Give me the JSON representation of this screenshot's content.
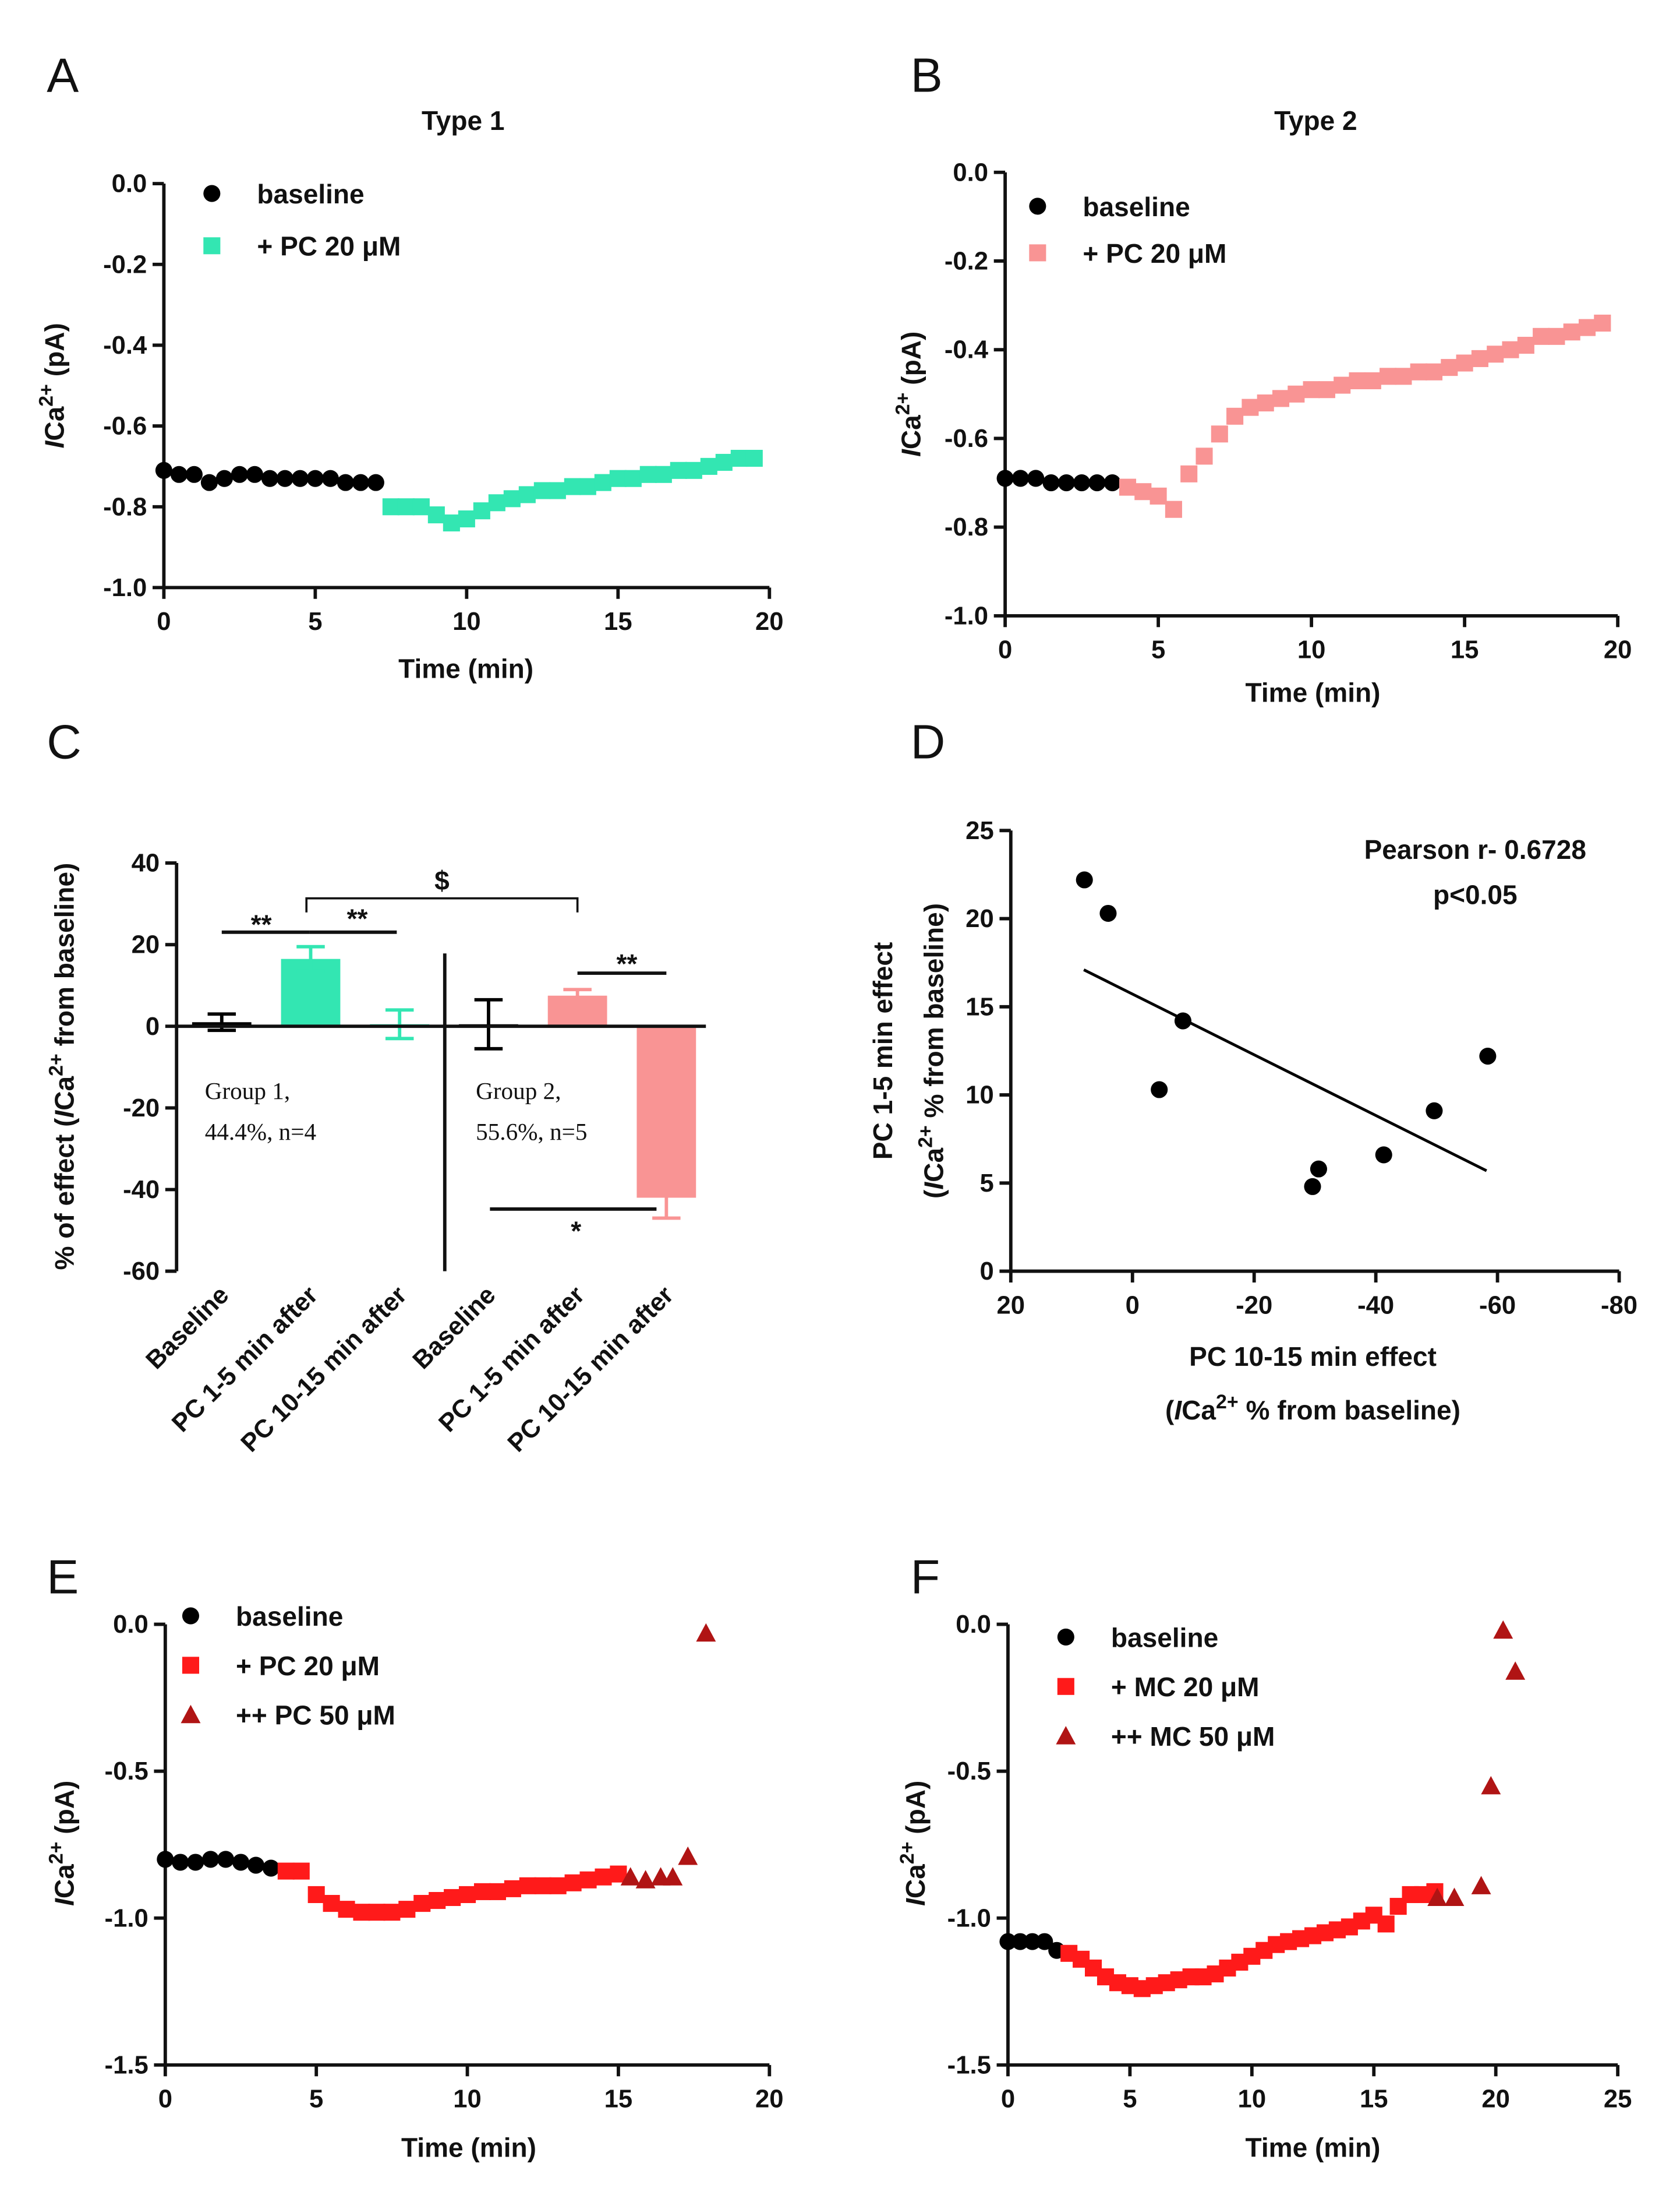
{
  "chart_data": [
    {
      "panel": "A",
      "type": "scatter",
      "title": "Type 1",
      "xlabel": [
        [
          {
            "text": "Time (min)"
          }
        ]
      ],
      "ylabel": [
        [
          {
            "text": "I",
            "style": "italic"
          },
          {
            "text": "Ca"
          },
          {
            "text": "2+",
            "style": "sup"
          },
          {
            "text": " (pA)"
          }
        ]
      ],
      "xlim": [
        0,
        20
      ],
      "xticks": [
        0,
        5,
        10,
        15,
        20
      ],
      "ylim": [
        -1,
        0
      ],
      "yticks": [
        {
          "value": 0,
          "label": "0.0"
        },
        -0.2,
        -0.4,
        -0.6,
        -0.8,
        {
          "value": -1,
          "label": "-1.0"
        }
      ],
      "series": [
        {
          "name": "baseline",
          "color": "#000000",
          "marker": "circle",
          "x": [
            0,
            0.5,
            1,
            1.5,
            2,
            2.5,
            3,
            3.5,
            4,
            4.5,
            5,
            5.5,
            6,
            6.5,
            7
          ],
          "values": [
            -0.71,
            -0.72,
            -0.72,
            -0.74,
            -0.73,
            -0.72,
            -0.72,
            -0.73,
            -0.73,
            -0.73,
            -0.73,
            -0.73,
            -0.74,
            -0.74,
            -0.74
          ]
        },
        {
          "name": "+ PC 20 μM",
          "color": "#33e6b2",
          "marker": "square",
          "x": [
            7.5,
            8,
            8.5,
            9,
            9.5,
            10,
            10.5,
            11,
            11.5,
            12,
            12.5,
            13,
            13.5,
            14,
            14.5,
            15,
            15.5,
            16,
            16.5,
            17,
            17.5,
            18,
            18.5,
            19,
            19.5
          ],
          "values": [
            -0.8,
            -0.8,
            -0.8,
            -0.82,
            -0.84,
            -0.83,
            -0.81,
            -0.79,
            -0.78,
            -0.77,
            -0.76,
            -0.76,
            -0.75,
            -0.75,
            -0.74,
            -0.73,
            -0.73,
            -0.72,
            -0.72,
            -0.71,
            -0.71,
            -0.7,
            -0.69,
            -0.68,
            -0.68
          ]
        }
      ]
    },
    {
      "panel": "B",
      "type": "scatter",
      "title": "Type 2",
      "xlabel": [
        [
          {
            "text": "Time (min)"
          }
        ]
      ],
      "ylabel": [
        [
          {
            "text": "I",
            "style": "italic"
          },
          {
            "text": "Ca"
          },
          {
            "text": "2+",
            "style": "sup"
          },
          {
            "text": " (pA)"
          }
        ]
      ],
      "xlim": [
        0,
        20
      ],
      "xticks": [
        0,
        5,
        10,
        15,
        20
      ],
      "ylim": [
        -1,
        0
      ],
      "yticks": [
        {
          "value": 0,
          "label": "0.0"
        },
        -0.2,
        -0.4,
        -0.6,
        -0.8,
        {
          "value": -1,
          "label": "-1.0"
        }
      ],
      "series": [
        {
          "name": "baseline",
          "color": "#000000",
          "marker": "circle",
          "x": [
            0,
            0.5,
            1,
            1.5,
            2,
            2.5,
            3,
            3.5
          ],
          "values": [
            -0.69,
            -0.69,
            -0.69,
            -0.7,
            -0.7,
            -0.7,
            -0.7,
            -0.7
          ]
        },
        {
          "name": "+ PC 20 μM",
          "color": "#f99494",
          "marker": "square",
          "x": [
            4,
            4.5,
            5,
            5.5,
            6,
            6.5,
            7,
            7.5,
            8,
            8.5,
            9,
            9.5,
            10,
            10.5,
            11,
            11.5,
            12,
            12.5,
            13,
            13.5,
            14,
            14.5,
            15,
            15.5,
            16,
            16.5,
            17,
            17.5,
            18,
            18.5,
            19,
            19.5
          ],
          "values": [
            -0.71,
            -0.72,
            -0.73,
            -0.76,
            -0.68,
            -0.64,
            -0.59,
            -0.55,
            -0.53,
            -0.52,
            -0.51,
            -0.5,
            -0.49,
            -0.49,
            -0.48,
            -0.47,
            -0.47,
            -0.46,
            -0.46,
            -0.45,
            -0.45,
            -0.44,
            -0.43,
            -0.42,
            -0.41,
            -0.4,
            -0.39,
            -0.37,
            -0.37,
            -0.36,
            -0.35,
            -0.34
          ]
        }
      ]
    },
    {
      "panel": "C",
      "type": "bar",
      "ylabel": [
        [
          {
            "text": "% of effect ("
          },
          {
            "text": "I",
            "style": "italic"
          },
          {
            "text": "Ca"
          },
          {
            "text": "2+",
            "style": "sup"
          },
          {
            "text": " from baseline)"
          }
        ]
      ],
      "categories": [
        "Baseline",
        "PC 1-5 min after",
        "PC 10-15 min after",
        "Baseline",
        "PC 1-5 min after",
        "PC 10-15 min after"
      ],
      "values": [
        1,
        16.5,
        0.5,
        0.5,
        7.5,
        -42
      ],
      "errors": [
        2,
        3,
        3.5,
        6,
        1.5,
        5
      ],
      "colors": [
        "#000000",
        "#33e6b2",
        "#33e6b2",
        "#000000",
        "#f99494",
        "#f99494"
      ],
      "ylim": [
        -60,
        40
      ],
      "yticks": [
        40,
        20,
        0,
        -20,
        -40,
        -60
      ],
      "annotations": [
        "**",
        "**",
        "$",
        "**",
        "*"
      ],
      "group_labels": [
        [
          "Group 1,",
          "44.4%, n=4"
        ],
        [
          "Group 2,",
          "55.6%, n=5"
        ]
      ]
    },
    {
      "panel": "D",
      "type": "scatter",
      "xlabel": [
        [
          {
            "text": "PC 10-15 min effect"
          }
        ],
        [
          {
            "text": "("
          },
          {
            "text": "I",
            "style": "italic"
          },
          {
            "text": "Ca"
          },
          {
            "text": "2+",
            "style": "sup"
          },
          {
            "text": " % from baseline)"
          }
        ]
      ],
      "ylabel": [
        [
          {
            "text": "PC 1-5 min effect"
          }
        ],
        [
          {
            "text": "("
          },
          {
            "text": "I",
            "style": "italic"
          },
          {
            "text": "Ca"
          },
          {
            "text": "2+",
            "style": "sup"
          },
          {
            "text": " % from baseline)"
          }
        ]
      ],
      "xlim": [
        20,
        -80
      ],
      "xticks": [
        20,
        0,
        -20,
        -40,
        -60,
        -80
      ],
      "ylim": [
        0,
        25
      ],
      "yticks": [
        0,
        5,
        10,
        15,
        20,
        25
      ],
      "series": [
        {
          "color": "#000000",
          "marker": "circle",
          "x": [
            7.9,
            4,
            -8.3,
            -4.4,
            -29.6,
            -30.6,
            -41.3,
            -49.6,
            -58.4
          ],
          "values": [
            22.2,
            20.3,
            14.2,
            10.3,
            4.8,
            5.8,
            6.6,
            9.1,
            12.2
          ]
        }
      ],
      "fit": {
        "x": [
          8,
          -58.2
        ],
        "y": [
          17.1,
          5.7
        ]
      },
      "annotations": [
        "Pearson r- 0.6728",
        "p<0.05"
      ]
    },
    {
      "panel": "E",
      "type": "scatter",
      "xlabel": [
        [
          {
            "text": "Time (min)"
          }
        ]
      ],
      "ylabel": [
        [
          {
            "text": "I",
            "style": "italic"
          },
          {
            "text": "Ca"
          },
          {
            "text": "2+",
            "style": "sup"
          },
          {
            "text": " (pA)"
          }
        ]
      ],
      "xlim": [
        0,
        20
      ],
      "xticks": [
        0,
        5,
        10,
        15,
        20
      ],
      "ylim": [
        -1.5,
        0
      ],
      "yticks": [
        {
          "value": 0,
          "label": "0.0"
        },
        -0.5,
        {
          "value": -1,
          "label": "-1.0"
        },
        -1.5
      ],
      "series": [
        {
          "name": "baseline",
          "color": "#000000",
          "marker": "circle",
          "x": [
            0,
            0.5,
            1,
            1.5,
            2,
            2.5,
            3,
            3.5
          ],
          "values": [
            -0.8,
            -0.81,
            -0.81,
            -0.8,
            -0.8,
            -0.81,
            -0.82,
            -0.83
          ]
        },
        {
          "name": "+ PC 20 μM",
          "color": "#ff1a1a",
          "marker": "square",
          "x": [
            4,
            4.5,
            5,
            5.5,
            6,
            6.5,
            7,
            7.5,
            8,
            8.5,
            9,
            9.5,
            10,
            10.5,
            11,
            11.5,
            12,
            12.5,
            13,
            13.5,
            14,
            14.5,
            15
          ],
          "values": [
            -0.84,
            -0.84,
            -0.92,
            -0.95,
            -0.97,
            -0.98,
            -0.98,
            -0.98,
            -0.97,
            -0.95,
            -0.94,
            -0.93,
            -0.92,
            -0.91,
            -0.91,
            -0.9,
            -0.89,
            -0.89,
            -0.89,
            -0.88,
            -0.87,
            -0.86,
            -0.85
          ]
        },
        {
          "name": "++ PC 50 μM",
          "color": "#b01414",
          "marker": "triangle",
          "x": [
            15.4,
            15.9,
            16.4,
            16.8,
            17.3,
            17.9
          ],
          "values": [
            -0.86,
            -0.87,
            -0.86,
            -0.86,
            -0.79,
            -0.03
          ]
        }
      ]
    },
    {
      "panel": "F",
      "type": "scatter",
      "xlabel": [
        [
          {
            "text": "Time (min)"
          }
        ]
      ],
      "ylabel": [
        [
          {
            "text": "I",
            "style": "italic"
          },
          {
            "text": "Ca"
          },
          {
            "text": "2+",
            "style": "sup"
          },
          {
            "text": " (pA)"
          }
        ]
      ],
      "xlim": [
        0,
        25
      ],
      "xticks": [
        0,
        5,
        10,
        15,
        20,
        25
      ],
      "ylim": [
        -1.5,
        0
      ],
      "yticks": [
        {
          "value": 0,
          "label": "0.0"
        },
        -0.5,
        {
          "value": -1,
          "label": "-1.0"
        },
        -1.5
      ],
      "series": [
        {
          "name": "baseline",
          "color": "#000000",
          "marker": "circle",
          "x": [
            0,
            0.5,
            1,
            1.5,
            2
          ],
          "values": [
            -1.08,
            -1.08,
            -1.08,
            -1.08,
            -1.11
          ]
        },
        {
          "name": "+ MC 20 μM",
          "color": "#ff1a1a",
          "marker": "square",
          "x": [
            2.5,
            3,
            3.5,
            4,
            4.5,
            5,
            5.5,
            6,
            6.5,
            7,
            7.5,
            8,
            8.5,
            9,
            9.5,
            10,
            10.5,
            11,
            11.5,
            12,
            12.5,
            13,
            13.5,
            14,
            14.5,
            15,
            15.5,
            16,
            16.5,
            17,
            17.5
          ],
          "values": [
            -1.12,
            -1.14,
            -1.17,
            -1.2,
            -1.22,
            -1.23,
            -1.24,
            -1.23,
            -1.22,
            -1.21,
            -1.2,
            -1.2,
            -1.19,
            -1.17,
            -1.15,
            -1.13,
            -1.11,
            -1.09,
            -1.08,
            -1.07,
            -1.06,
            -1.05,
            -1.04,
            -1.03,
            -1.01,
            -0.99,
            -1.02,
            -0.96,
            -0.92,
            -0.92,
            -0.91
          ]
        },
        {
          "name": "++ MC 50 μM",
          "color": "#b01414",
          "marker": "triangle",
          "x": [
            17.6,
            18.3,
            19.4,
            19.8,
            20.3,
            20.8
          ],
          "values": [
            -0.93,
            -0.93,
            -0.89,
            -0.55,
            -0.02,
            -0.16
          ]
        }
      ]
    }
  ]
}
